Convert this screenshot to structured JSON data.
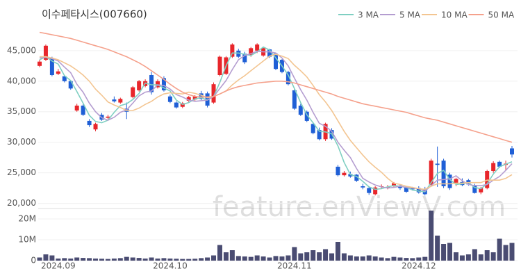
{
  "chart_data": {
    "type": "candlestick",
    "title": "이수페타시스(007660)",
    "watermark": "feature.enViewV.com",
    "legend": "top-right",
    "grid": true,
    "up_color": "#e8262b",
    "down_color": "#1f5fd6",
    "categories": [
      null,
      null,
      null,
      "2024.09",
      null,
      null,
      null,
      null,
      null,
      null,
      null,
      null,
      null,
      null,
      null,
      null,
      null,
      null,
      null,
      null,
      null,
      "2024.10",
      null,
      null,
      null,
      null,
      null,
      null,
      null,
      null,
      null,
      null,
      null,
      null,
      null,
      null,
      null,
      null,
      null,
      null,
      null,
      "2024.11",
      null,
      null,
      null,
      null,
      null,
      null,
      null,
      null,
      null,
      null,
      null,
      null,
      null,
      null,
      null,
      null,
      null,
      null,
      null,
      "2024.12",
      null,
      null,
      null,
      null,
      null,
      null,
      null,
      null,
      null,
      null,
      null,
      null,
      null,
      null,
      null
    ],
    "open": [
      42500,
      43500,
      43800,
      41200,
      40800,
      40000,
      35200,
      36000,
      33500,
      32100,
      34500,
      34000,
      37000,
      36500,
      35500,
      37400,
      38500,
      39200,
      41000,
      39000,
      40500,
      37500,
      36500,
      35800,
      36800,
      37000,
      38000,
      38000,
      36500,
      41000,
      41200,
      44000,
      45000,
      44500,
      44300,
      45000,
      44200,
      45200,
      44500,
      43500,
      41500,
      38500,
      36000,
      35000,
      33000,
      32000,
      30500,
      32000,
      26000,
      24600,
      24800,
      24700,
      22800,
      22500,
      21500,
      22700,
      22600,
      22900,
      22900,
      22600,
      22500,
      22500,
      22300,
      23000,
      26500,
      27000,
      24700,
      23200,
      23500,
      23800,
      23000,
      21800,
      22500,
      25300,
      26800,
      26300,
      29000
    ],
    "high": [
      43500,
      46000,
      44000,
      42000,
      41000,
      40200,
      36300,
      36200,
      33800,
      33200,
      34800,
      34500,
      37500,
      37300,
      36500,
      39200,
      40200,
      40300,
      41500,
      40300,
      40800,
      37800,
      36700,
      36600,
      37600,
      37700,
      38400,
      38300,
      39800,
      44200,
      44100,
      46200,
      45300,
      44800,
      45600,
      46200,
      45600,
      45300,
      44700,
      43600,
      41700,
      38700,
      36300,
      35200,
      33200,
      32400,
      33200,
      32300,
      26300,
      25300,
      25200,
      24800,
      23200,
      22700,
      22800,
      23100,
      23000,
      23500,
      23100,
      22800,
      22700,
      22800,
      22700,
      27300,
      29300,
      27300,
      25000,
      24200,
      24100,
      24000,
      23200,
      22700,
      25500,
      26900,
      27000,
      27000,
      29400
    ],
    "low": [
      42300,
      43300,
      40800,
      41000,
      39800,
      38600,
      35000,
      34300,
      32500,
      31800,
      33500,
      33800,
      36500,
      36300,
      33800,
      37200,
      38300,
      39000,
      37800,
      38800,
      38300,
      36400,
      35500,
      35600,
      36600,
      36800,
      36900,
      35700,
      36300,
      40800,
      41000,
      43800,
      43800,
      42800,
      44000,
      44600,
      44000,
      43800,
      41800,
      41300,
      39300,
      35300,
      34300,
      33300,
      31300,
      30300,
      30200,
      30400,
      24400,
      24400,
      24200,
      23500,
      22300,
      21400,
      21300,
      22400,
      22300,
      22700,
      22200,
      21700,
      22100,
      21600,
      21300,
      22800,
      22700,
      22500,
      22200,
      22800,
      22800,
      22900,
      21600,
      21500,
      22300,
      25000,
      25800,
      25500,
      27500
    ],
    "close": [
      43200,
      45800,
      41000,
      41600,
      40000,
      38800,
      36000,
      34500,
      32800,
      33000,
      33700,
      34200,
      36700,
      37100,
      35000,
      39000,
      40000,
      40000,
      38200,
      40000,
      38500,
      36600,
      35700,
      36400,
      37400,
      37500,
      37100,
      36000,
      39500,
      44000,
      43900,
      46000,
      44000,
      43100,
      45400,
      46000,
      45400,
      44000,
      42000,
      41500,
      39500,
      35500,
      34500,
      33500,
      31500,
      30500,
      33000,
      30600,
      24600,
      25000,
      24400,
      23700,
      22600,
      21700,
      22600,
      22800,
      22700,
      23300,
      22500,
      21900,
      22300,
      21800,
      21500,
      27000,
      26300,
      22800,
      22500,
      24000,
      23000,
      23100,
      21700,
      22500,
      25300,
      26600,
      26000,
      26500,
      28000
    ],
    "ylim": [
      19500,
      50100
    ],
    "yticks": [
      {
        "value": 20000,
        "label": "20,000"
      },
      {
        "value": 25000,
        "label": "25,000"
      },
      {
        "value": 30000,
        "label": "30,000"
      },
      {
        "value": 35000,
        "label": "35,000"
      },
      {
        "value": 40000,
        "label": "40,000"
      },
      {
        "value": 45000,
        "label": "45,000"
      }
    ],
    "series": [
      {
        "name": "3 MA",
        "color": "#7fcfc2",
        "values": [
          43500,
          44000,
          43300,
          42800,
          40900,
          40100,
          38300,
          36400,
          34400,
          33400,
          33200,
          33600,
          34900,
          36000,
          36300,
          37000,
          38000,
          39700,
          39400,
          39400,
          38900,
          38400,
          36900,
          36200,
          36500,
          37100,
          37300,
          36900,
          37500,
          39800,
          42500,
          44600,
          44600,
          44400,
          44200,
          44800,
          45600,
          45100,
          43800,
          42500,
          41000,
          38800,
          36500,
          34500,
          33200,
          31800,
          31700,
          31400,
          29400,
          26700,
          24700,
          24400,
          23600,
          22700,
          22300,
          22400,
          22700,
          22900,
          22800,
          22600,
          22200,
          22000,
          21900,
          23400,
          24900,
          25400,
          23900,
          23100,
          23200,
          23400,
          22600,
          22400,
          23200,
          24800,
          26000,
          26400,
          26800
        ]
      },
      {
        "name": "5 MA",
        "color": "#b49dd0",
        "values": [
          43800,
          43900,
          43700,
          43300,
          42300,
          41400,
          39500,
          38200,
          36400,
          35000,
          34000,
          33600,
          34100,
          34900,
          35300,
          36400,
          37600,
          38200,
          38400,
          39400,
          39300,
          38700,
          37800,
          37400,
          36900,
          36700,
          36800,
          36900,
          37500,
          38800,
          40100,
          41900,
          43500,
          44200,
          44500,
          44900,
          44800,
          44800,
          44600,
          43800,
          42500,
          40500,
          38600,
          36900,
          34900,
          33100,
          32600,
          31800,
          30000,
          28700,
          27500,
          25700,
          24100,
          23500,
          23000,
          22700,
          22500,
          22600,
          22800,
          22600,
          22500,
          22400,
          22000,
          22900,
          23800,
          23900,
          24000,
          24500,
          23700,
          23100,
          22900,
          22900,
          23100,
          23800,
          24400,
          25400,
          26500
        ]
      },
      {
        "name": "10 MA",
        "color": "#f3c591",
        "values": [
          44000,
          44000,
          43800,
          43500,
          43000,
          42500,
          41800,
          41000,
          40000,
          38700,
          37700,
          36600,
          36100,
          35700,
          35200,
          35200,
          35600,
          36200,
          36700,
          37400,
          37900,
          38100,
          38000,
          37900,
          38200,
          38000,
          37700,
          37300,
          37500,
          37900,
          38400,
          39400,
          40200,
          40900,
          41700,
          42500,
          43300,
          44100,
          44400,
          44100,
          43700,
          42600,
          41700,
          40700,
          39300,
          37800,
          36600,
          35200,
          33500,
          31800,
          30300,
          29100,
          27900,
          26800,
          25900,
          25100,
          24100,
          23300,
          23100,
          22800,
          22600,
          22400,
          22300,
          22800,
          23200,
          23200,
          23200,
          23300,
          23300,
          23400,
          23400,
          23400,
          23800,
          23800,
          23800,
          24100,
          24700
        ]
      },
      {
        "name": "50 MA",
        "color": "#f5a18c",
        "values": [
          48000,
          47800,
          47600,
          47400,
          47200,
          47000,
          46700,
          46400,
          46100,
          45800,
          45500,
          45200,
          44800,
          44400,
          44000,
          43500,
          43000,
          42400,
          41700,
          41000,
          40300,
          39500,
          38800,
          38200,
          37800,
          37500,
          37400,
          37400,
          37500,
          37900,
          38400,
          38800,
          39100,
          39300,
          39500,
          39700,
          39800,
          39900,
          40000,
          40000,
          39900,
          39700,
          39400,
          39100,
          38800,
          38500,
          38200,
          37900,
          37500,
          37200,
          36900,
          36600,
          36300,
          36100,
          35900,
          35700,
          35500,
          35300,
          35100,
          34900,
          34600,
          34300,
          34000,
          33800,
          33600,
          33300,
          33000,
          32700,
          32400,
          32100,
          31800,
          31500,
          31200,
          30900,
          30600,
          30300,
          30000
        ]
      }
    ],
    "volume": {
      "color": "#4a4c72",
      "values": [
        1500000,
        3000000,
        2500000,
        1000000,
        1200000,
        1000000,
        1500000,
        1300000,
        1200000,
        1000000,
        900000,
        800000,
        1000000,
        1200000,
        1800000,
        1500000,
        1300000,
        1000000,
        1500000,
        1000000,
        1200000,
        1000000,
        900000,
        800000,
        800000,
        900000,
        1200000,
        1500000,
        2500000,
        7500000,
        4000000,
        5000000,
        2200000,
        2000000,
        1800000,
        2500000,
        2000000,
        1500000,
        2200000,
        2000000,
        2500000,
        6500000,
        3500000,
        4000000,
        5000000,
        4000000,
        5500000,
        3500000,
        9000000,
        3500000,
        2500000,
        2000000,
        2000000,
        2500000,
        2000000,
        1500000,
        1200000,
        1800000,
        1500000,
        1300000,
        1200000,
        1500000,
        1800000,
        24000000,
        12000000,
        8000000,
        8500000,
        4000000,
        2500000,
        3000000,
        5500000,
        3000000,
        5000000,
        4000000,
        10500000,
        7500000,
        8500000
      ],
      "ylim": [
        0,
        24000000
      ],
      "yticks": [
        0,
        {
          "value": 10000000,
          "label": "10M"
        },
        {
          "value": 20000000,
          "label": "20M"
        }
      ]
    }
  }
}
